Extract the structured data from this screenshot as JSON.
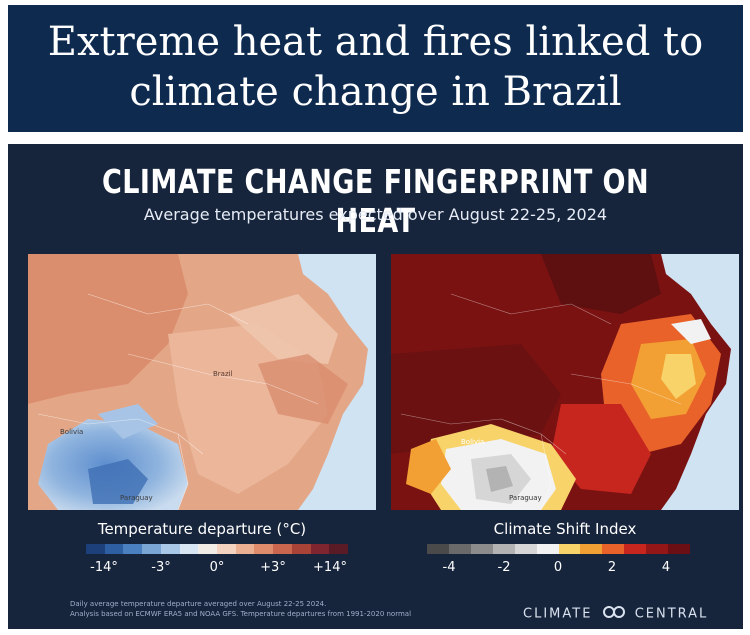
{
  "headline": {
    "line1": "Extreme heat and fires linked to",
    "line2": "climate change in Brazil"
  },
  "graphic": {
    "title": "CLIMATE CHANGE FINGERPRINT ON HEAT",
    "subtitle": "Average temperatures expected over August 22-25, 2024",
    "map_left": {
      "legend_title": "Temperature departure (°C)",
      "legend_ticks": [
        "-14°",
        "-3°",
        "0°",
        "+3°",
        "+14°"
      ],
      "legend_colors": [
        "#1d3f7a",
        "#2e5fa3",
        "#4a7fc0",
        "#7aa6d6",
        "#a9c7e6",
        "#d8e6f3",
        "#f1ece6",
        "#f3d2bf",
        "#eab091",
        "#de8c6b",
        "#c9664d",
        "#a94337",
        "#7f2530",
        "#5a1a26"
      ],
      "place_labels": [
        "Bolivia",
        "Paraguay",
        "Brazil"
      ]
    },
    "map_right": {
      "legend_title": "Climate Shift Index",
      "legend_ticks": [
        "-4",
        "-2",
        "0",
        "2",
        "4"
      ],
      "legend_colors": [
        "#4a4a4a",
        "#6a6a6a",
        "#8c8c8c",
        "#b3b3b3",
        "#d6d6d6",
        "#f2f2f2",
        "#f7d36a",
        "#f2a033",
        "#e8622a",
        "#c7261f",
        "#951616",
        "#6b0f14"
      ],
      "place_labels": [
        "Bolivia",
        "Paraguay"
      ]
    },
    "footnote": {
      "line1": "Daily average temperature departure averaged over August 22-25 2024.",
      "line2": "Analysis based on ECMWF ERA5 and NOAA GFS. Temperature departures from 1991-2020 normal"
    },
    "brand": {
      "left": "CLIMATE",
      "right": "CENTRAL",
      "icon": "climate-central-logo-icon"
    }
  }
}
